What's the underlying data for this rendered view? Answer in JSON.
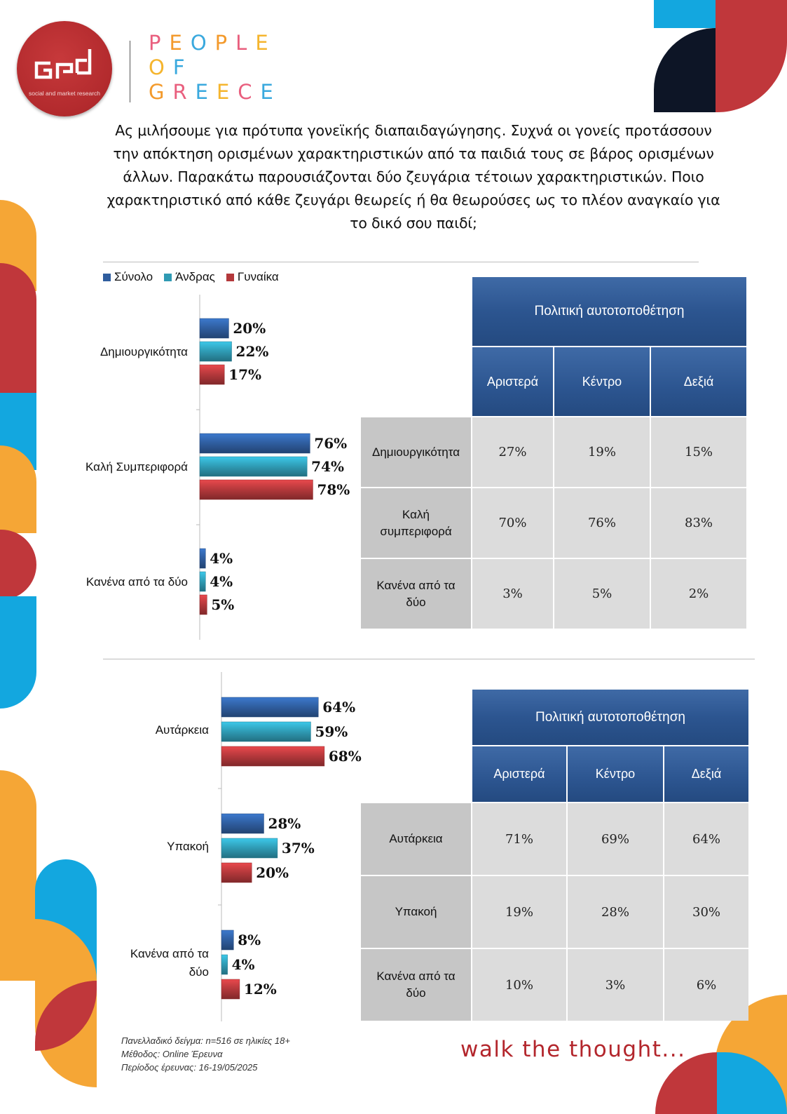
{
  "brand": {
    "logo_tagline": "social and market research",
    "lines": [
      [
        {
          "ch": "P",
          "c": "#e95f7e"
        },
        {
          "ch": "E",
          "c": "#f39a2c"
        },
        {
          "ch": "O",
          "c": "#3aa9de"
        },
        {
          "ch": "P",
          "c": "#f39a2c"
        },
        {
          "ch": "L",
          "c": "#e95f7e"
        },
        {
          "ch": "E",
          "c": "#f5b52e"
        }
      ],
      [
        {
          "ch": "O",
          "c": "#f5b52e"
        },
        {
          "ch": "F",
          "c": "#3aa9de"
        }
      ],
      [
        {
          "ch": "G",
          "c": "#f39a2c"
        },
        {
          "ch": "R",
          "c": "#e95f7e"
        },
        {
          "ch": "E",
          "c": "#3aa9de"
        },
        {
          "ch": "E",
          "c": "#f5b52e"
        },
        {
          "ch": "C",
          "c": "#e95f7e"
        },
        {
          "ch": "E",
          "c": "#3aa9de"
        }
      ]
    ]
  },
  "question": "Ας μιλήσουμε για πρότυπα γονεϊκής διαπαιδαγώγησης. Συχνά οι γονείς προτάσσουν την απόκτηση ορισμένων χαρακτηριστικών από τα παιδιά τους σε βάρος ορισμένων άλλων. Παρακάτω παρουσιάζονται δύο ζευγάρια τέτοιων χαρακτηριστικών. Ποιο χαρακτηριστικό από κάθε ζευγάρι θεωρείς ή θα θεωρούσες ως το πλέον αναγκαίο για το δικό σου παιδί;",
  "legend": [
    {
      "label": "Σύνολο",
      "color": "#2f5d9e"
    },
    {
      "label": "Άνδρας",
      "color": "#2f9ab3"
    },
    {
      "label": "Γυναίκα",
      "color": "#b3383b"
    }
  ],
  "chart_data": [
    {
      "type": "bar",
      "orientation": "horizontal",
      "categories": [
        "Δημιουργικότητα",
        "Καλή Συμπεριφορά",
        "Κανένα από τα δύο"
      ],
      "series": [
        {
          "name": "Σύνολο",
          "color": "#2f5d9e",
          "values": [
            20,
            76,
            4
          ],
          "labels": [
            "20%",
            "76%",
            "4%"
          ]
        },
        {
          "name": "Άνδρας",
          "color": "#2f9ab3",
          "values": [
            22,
            74,
            4
          ],
          "labels": [
            "22%",
            "74%",
            "4%"
          ]
        },
        {
          "name": "Γυναίκα",
          "color": "#b3383b",
          "values": [
            17,
            78,
            5
          ],
          "labels": [
            "17%",
            "78%",
            "5%"
          ]
        }
      ],
      "unit": "%"
    },
    {
      "type": "bar",
      "orientation": "horizontal",
      "categories": [
        "Αυτάρκεια",
        "Υπακοή",
        "Κανένα από τα δύο"
      ],
      "series": [
        {
          "name": "Σύνολο",
          "color": "#2f5d9e",
          "values": [
            64,
            28,
            8
          ],
          "labels": [
            "64%",
            "28%",
            "8%"
          ]
        },
        {
          "name": "Άνδρας",
          "color": "#2f9ab3",
          "values": [
            59,
            37,
            4
          ],
          "labels": [
            "59%",
            "37%",
            "4%"
          ]
        },
        {
          "name": "Γυναίκα",
          "color": "#b3383b",
          "values": [
            68,
            20,
            12
          ],
          "labels": [
            "68%",
            "20%",
            "12%"
          ]
        }
      ],
      "unit": "%"
    },
    {
      "type": "table",
      "title": "Πολιτική αυτοτοποθέτηση",
      "columns": [
        "Αριστερά",
        "Κέντρο",
        "Δεξιά"
      ],
      "rows": [
        {
          "label": "Δημιουργικότητα",
          "values": [
            "27%",
            "19%",
            "15%"
          ]
        },
        {
          "label": "Καλή συμπεριφορά",
          "values": [
            "70%",
            "76%",
            "83%"
          ]
        },
        {
          "label": "Κανένα από τα δύο",
          "values": [
            "3%",
            "5%",
            "2%"
          ]
        }
      ]
    },
    {
      "type": "table",
      "title": "Πολιτική αυτοτοποθέτηση",
      "columns": [
        "Αριστερά",
        "Κέντρο",
        "Δεξιά"
      ],
      "rows": [
        {
          "label": "Αυτάρκεια",
          "values": [
            "71%",
            "69%",
            "64%"
          ]
        },
        {
          "label": "Υπακοή",
          "values": [
            "19%",
            "28%",
            "30%"
          ]
        },
        {
          "label": "Κανένα από τα δύο",
          "values": [
            "10%",
            "3%",
            "6%"
          ]
        }
      ]
    }
  ],
  "footnote": {
    "sample": "Πανελλαδικό δείγμα: n=516 σε ηλικίες 18+",
    "method": "Μέθοδος: Online Έρευνα",
    "period": "Περίοδος έρευνας: 16-19/05/2025"
  },
  "slogan": "walk the thought...",
  "colors": {
    "red": "#c0373b",
    "orange": "#f5a636",
    "blue": "#13a7df",
    "navy": "#0d1526",
    "table_header": "#2c5590"
  }
}
